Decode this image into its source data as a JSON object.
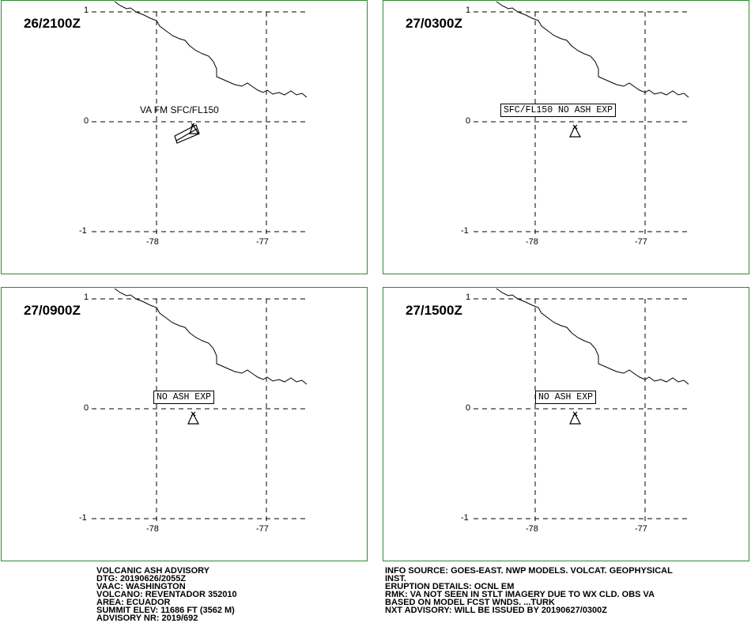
{
  "panels": [
    {
      "time": "26/2100Z",
      "label_plain": "VA FM SFC/FL150",
      "label_box": ""
    },
    {
      "time": "27/0300Z",
      "label_plain": "",
      "label_box": "SFC/FL150 NO ASH EXP"
    },
    {
      "time": "27/0900Z",
      "label_plain": "",
      "label_box": "NO ASH EXP"
    },
    {
      "time": "27/1500Z",
      "label_plain": "",
      "label_box": "NO ASH EXP"
    }
  ],
  "axes": {
    "lat_ticks": [
      "1",
      "0",
      "-1"
    ],
    "lon_ticks": [
      "-78",
      "-77"
    ]
  },
  "advisory_left": [
    "VOLCANIC ASH ADVISORY",
    "DTG: 20190626/2055Z",
    "VAAC: WASHINGTON",
    "VOLCANO: REVENTADOR 352010",
    "AREA: ECUADOR",
    "SUMMIT ELEV: 11686 FT (3562 M)",
    "ADVISORY NR: 2019/692"
  ],
  "advisory_right": [
    "INFO SOURCE: GOES-EAST. NWP MODELS. VOLCAT. GEOPHYSICAL",
    "INST.",
    "ERUPTION DETAILS: OCNL EM",
    "RMK: VA NOT SEEN IN STLT IMAGERY DUE TO WX CLD. OBS VA",
    "BASED ON MODEL FCST WNDS. ...TURK",
    "NXT ADVISORY: WILL BE ISSUED BY 20190627/0300Z"
  ],
  "colors": {
    "panel_border": "#2e8b2e",
    "ink": "#000000"
  }
}
